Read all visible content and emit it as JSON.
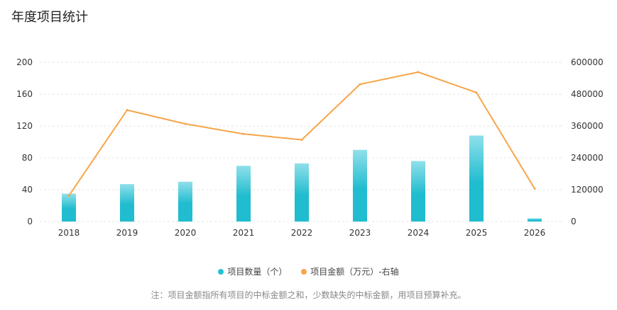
{
  "page": {
    "title": "年度项目统计",
    "note": "注：项目金额指所有项目的中标金额之和，少数缺失的中标金额，用项目预算补充。"
  },
  "legend": {
    "count_label": "项目数量（个）",
    "amount_label": "项目金额（万元）-右轴"
  },
  "colors": {
    "bar_top": "#8fe0ea",
    "bar_bottom": "#20bccf",
    "line": "#f7a54a",
    "grid": "#e6e6e6",
    "axis_text": "#333333"
  },
  "chart_data": {
    "type": "bar+line",
    "title": "年度项目统计",
    "categories": [
      "2018",
      "2019",
      "2020",
      "2021",
      "2022",
      "2023",
      "2024",
      "2025",
      "2026"
    ],
    "series": [
      {
        "name": "项目数量（个）",
        "type": "bar",
        "axis": "left",
        "values": [
          35,
          47,
          50,
          70,
          73,
          90,
          76,
          108,
          4
        ]
      },
      {
        "name": "项目金额（万元）-右轴",
        "type": "line",
        "axis": "right",
        "values": [
          97000,
          420000,
          368000,
          330000,
          308000,
          517000,
          563000,
          486000,
          124000
        ]
      }
    ],
    "y_left": {
      "min": 0,
      "max": 200,
      "ticks": [
        "0",
        "40",
        "80",
        "120",
        "160",
        "200"
      ]
    },
    "y_right": {
      "min": 0,
      "max": 600000,
      "ticks": [
        "0",
        "120000",
        "240000",
        "360000",
        "480000",
        "600000"
      ]
    },
    "grid": true,
    "legend_position": "bottom"
  }
}
